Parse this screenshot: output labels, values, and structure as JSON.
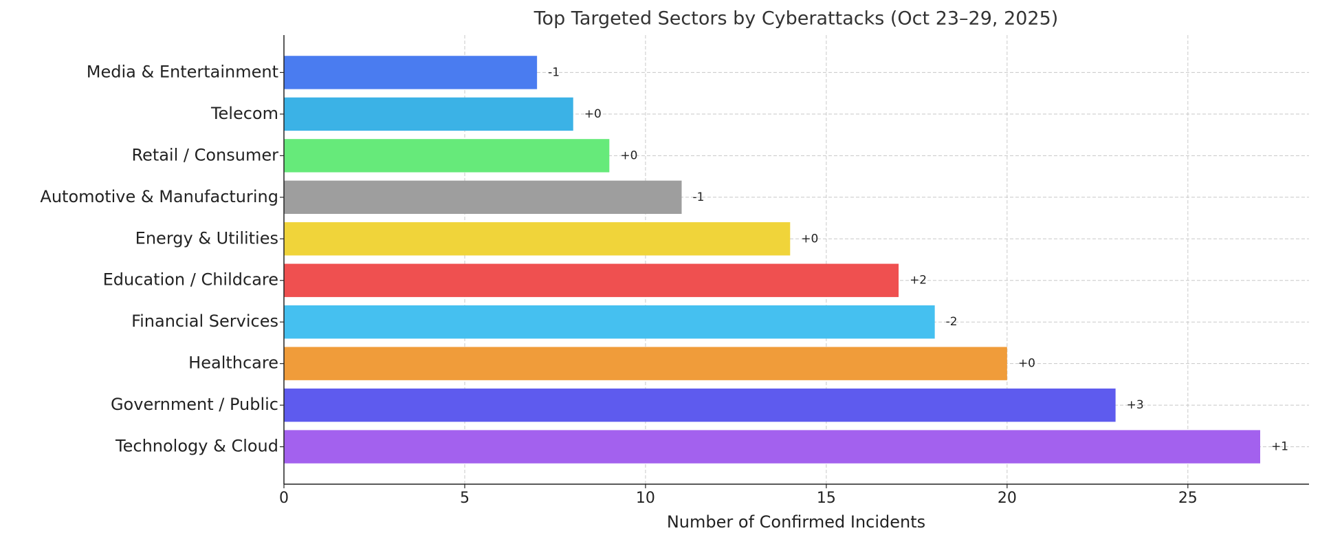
{
  "chart_data": {
    "type": "barh",
    "title": "Top Targeted Sectors by Cyberattacks (Oct 23–29, 2025)",
    "x_label": "Number of Confirmed Incidents",
    "categories": [
      "Media & Entertainment",
      "Telecom",
      "Retail / Consumer",
      "Automotive & Manufacturing",
      "Energy & Utilities",
      "Education / Childcare",
      "Financial Services",
      "Healthcare",
      "Government / Public",
      "Technology & Cloud"
    ],
    "values": [
      7,
      8,
      9,
      11,
      14,
      17,
      18,
      20,
      23,
      27
    ],
    "change_labels": [
      "-1",
      "+0",
      "+0",
      "-1",
      "+0",
      "+2",
      "-2",
      "+0",
      "+3",
      "+1"
    ],
    "colors": [
      "#4a7cf0",
      "#3bb2e6",
      "#66ea7a",
      "#9e9e9e",
      "#f0d43a",
      "#ef5050",
      "#45c0f0",
      "#f09c3a",
      "#5e5bee",
      "#a361ee"
    ],
    "xlim": [
      0,
      28.35
    ],
    "xticks": [
      0,
      5,
      10,
      15,
      20,
      25
    ],
    "grid": true
  }
}
